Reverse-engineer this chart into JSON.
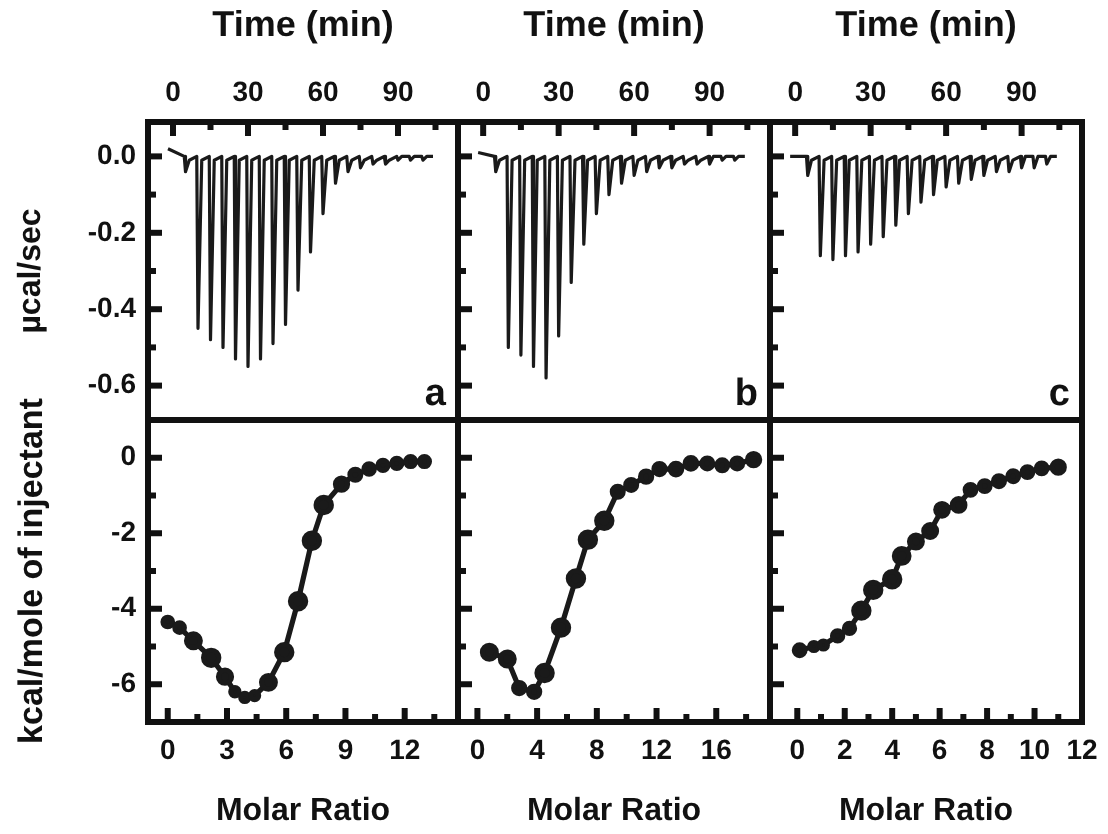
{
  "chart_data": [
    {
      "type": "line",
      "xlabel": "Time (min)",
      "ylabel": "µcal/sec",
      "xlim": [
        -10,
        114
      ],
      "ylim": [
        -0.69,
        0.09
      ],
      "xticks": [
        0,
        {
          "value": 15,
          "label": null
        },
        30,
        {
          "value": 45,
          "label": null
        },
        60,
        {
          "value": 75,
          "label": null
        },
        90,
        {
          "value": 105,
          "label": null
        }
      ],
      "yticks": [
        {
          "value": 0,
          "label": "0.0"
        },
        {
          "value": -0.1,
          "label": null
        },
        -0.2,
        {
          "value": -0.3,
          "label": null
        },
        -0.4,
        {
          "value": -0.5,
          "label": null
        },
        -0.6
      ],
      "marker": "none",
      "annotations": [
        "a"
      ],
      "x": [
        -2,
        4.5,
        5,
        6.5,
        9.5,
        10,
        11.5,
        14.5,
        15,
        16.5,
        19.5,
        20,
        21.5,
        24.5,
        25,
        26.5,
        29.5,
        30,
        31.5,
        34.5,
        35,
        36.5,
        39.5,
        40,
        41.5,
        44.5,
        45,
        46.5,
        49.5,
        50,
        51.5,
        54.5,
        55,
        56.5,
        59.5,
        60,
        61.5,
        64.5,
        65,
        66.5,
        69.5,
        70,
        71.5,
        74.5,
        75,
        76.5,
        79.5,
        80,
        81.5,
        84.5,
        85,
        86.5,
        89.5,
        90,
        91.5,
        94.5,
        95,
        96.5,
        99.5,
        100,
        101.5,
        104
      ],
      "series": [
        {
          "color": "#1a1a1a",
          "values": [
            0.02,
            0,
            -0.04,
            -0.01,
            0,
            -0.45,
            -0.01,
            0,
            -0.48,
            -0.01,
            0,
            -0.5,
            -0.01,
            0,
            -0.53,
            -0.01,
            0,
            -0.55,
            -0.01,
            0,
            -0.53,
            -0.01,
            0,
            -0.49,
            -0.01,
            0,
            -0.44,
            -0.01,
            0,
            -0.35,
            -0.01,
            0,
            -0.25,
            -0.01,
            0,
            -0.15,
            -0.01,
            0,
            -0.07,
            -0.01,
            0,
            -0.04,
            -0.01,
            0,
            -0.03,
            -0.01,
            0,
            -0.02,
            -0.01,
            0,
            -0.02,
            -0.01,
            0,
            -0.01,
            0,
            0,
            -0.01,
            0,
            0,
            -0.01,
            0,
            0
          ]
        }
      ]
    },
    {
      "type": "line",
      "xlabel": "Time (min)",
      "xlim": [
        -10,
        114
      ],
      "ylim": [
        -0.69,
        0.09
      ],
      "xticks": [
        0,
        {
          "value": 15,
          "label": null
        },
        30,
        {
          "value": 45,
          "label": null
        },
        60,
        {
          "value": 75,
          "label": null
        },
        90,
        {
          "value": 105,
          "label": null
        }
      ],
      "yticks": [
        0,
        {
          "value": -0.1,
          "label": null
        },
        -0.2,
        {
          "value": -0.3,
          "label": null
        },
        -0.4,
        {
          "value": -0.5,
          "label": null
        },
        -0.6
      ],
      "tick_labels": "x",
      "marker": "none",
      "annotations": [
        "b"
      ],
      "x": [
        -2,
        4.5,
        5,
        6.5,
        9.5,
        10,
        11.5,
        14.5,
        15,
        16.5,
        19.5,
        20,
        21.5,
        24.5,
        25,
        26.5,
        29.5,
        30,
        31.5,
        34.5,
        35,
        36.5,
        39.5,
        40,
        41.5,
        44.5,
        45,
        46.5,
        49.5,
        50,
        51.5,
        54.5,
        55,
        56.5,
        59.5,
        60,
        61.5,
        64.5,
        65,
        66.5,
        69.5,
        70,
        71.5,
        74.5,
        75,
        76.5,
        79.5,
        80,
        81.5,
        84.5,
        85,
        86.5,
        89.5,
        90,
        91.5,
        94.5,
        95,
        96.5,
        99.5,
        100,
        101.5,
        104
      ],
      "series": [
        {
          "color": "#1a1a1a",
          "values": [
            0.01,
            0,
            -0.04,
            -0.01,
            0,
            -0.5,
            -0.01,
            0,
            -0.52,
            -0.01,
            0,
            -0.55,
            -0.01,
            0,
            -0.58,
            -0.01,
            0,
            -0.47,
            -0.01,
            0,
            -0.33,
            -0.01,
            0,
            -0.23,
            -0.01,
            0,
            -0.15,
            -0.01,
            0,
            -0.1,
            -0.01,
            0,
            -0.07,
            -0.01,
            0,
            -0.05,
            -0.01,
            0,
            -0.04,
            -0.01,
            0,
            -0.03,
            -0.01,
            0,
            -0.03,
            -0.01,
            0,
            -0.02,
            -0.01,
            0,
            -0.02,
            -0.01,
            0,
            -0.02,
            0,
            0,
            -0.01,
            0,
            0,
            -0.01,
            0,
            0
          ]
        }
      ]
    },
    {
      "type": "line",
      "xlabel": "Time (min)",
      "xlim": [
        -10,
        114
      ],
      "ylim": [
        -0.69,
        0.09
      ],
      "xticks": [
        0,
        {
          "value": 15,
          "label": null
        },
        30,
        {
          "value": 45,
          "label": null
        },
        60,
        {
          "value": 75,
          "label": null
        },
        90,
        {
          "value": 105,
          "label": null
        }
      ],
      "yticks": [
        0,
        {
          "value": -0.1,
          "label": null
        },
        -0.2,
        {
          "value": -0.3,
          "label": null
        },
        -0.4,
        {
          "value": -0.5,
          "label": null
        },
        -0.6
      ],
      "tick_labels": "x",
      "marker": "none",
      "annotations": [
        "c"
      ],
      "x": [
        -2,
        4.5,
        5,
        6.5,
        9.5,
        10,
        11.5,
        14.5,
        15,
        16.5,
        19.5,
        20,
        21.5,
        24.5,
        25,
        26.5,
        29.5,
        30,
        31.5,
        34.5,
        35,
        36.5,
        39.5,
        40,
        41.5,
        44.5,
        45,
        46.5,
        49.5,
        50,
        51.5,
        54.5,
        55,
        56.5,
        59.5,
        60,
        61.5,
        64.5,
        65,
        66.5,
        69.5,
        70,
        71.5,
        74.5,
        75,
        76.5,
        79.5,
        80,
        81.5,
        84.5,
        85,
        86.5,
        89.5,
        90,
        91.5,
        94.5,
        95,
        96.5,
        99.5,
        100,
        101.5,
        104
      ],
      "series": [
        {
          "color": "#1a1a1a",
          "values": [
            0,
            0,
            -0.05,
            -0.01,
            0,
            -0.26,
            -0.01,
            0,
            -0.27,
            -0.01,
            0,
            -0.26,
            -0.01,
            0,
            -0.25,
            -0.01,
            0,
            -0.23,
            -0.01,
            0,
            -0.21,
            -0.01,
            0,
            -0.18,
            -0.01,
            0,
            -0.15,
            -0.01,
            0,
            -0.12,
            -0.01,
            0,
            -0.1,
            -0.01,
            0,
            -0.08,
            -0.01,
            0,
            -0.07,
            -0.01,
            0,
            -0.06,
            -0.01,
            0,
            -0.05,
            -0.01,
            0,
            -0.04,
            -0.01,
            0,
            -0.04,
            -0.01,
            0,
            -0.03,
            0,
            0,
            -0.03,
            0,
            0,
            -0.02,
            0,
            0
          ]
        }
      ]
    },
    {
      "type": "line",
      "xlabel": "Molar Ratio",
      "ylabel": "kcal/mole of injectant",
      "xlim": [
        -1,
        14.7
      ],
      "ylim": [
        -7,
        1
      ],
      "xticks": [
        0,
        {
          "value": 1.5,
          "label": null
        },
        3,
        {
          "value": 4.5,
          "label": null
        },
        6,
        {
          "value": 7.5,
          "label": null
        },
        9,
        {
          "value": 10.5,
          "label": null
        },
        12,
        {
          "value": 13.5,
          "label": null
        }
      ],
      "yticks": [
        0,
        {
          "value": -1,
          "label": null
        },
        -2,
        {
          "value": -3,
          "label": null
        },
        -4,
        {
          "value": -5,
          "label": null
        },
        -6
      ],
      "marker": "circle",
      "x": [
        0,
        0.6,
        1.3,
        2.2,
        2.9,
        3.4,
        3.9,
        4.4,
        5.1,
        5.9,
        6.6,
        7.3,
        7.9,
        8.8,
        9.5,
        10.2,
        10.9,
        11.6,
        12.3,
        13
      ],
      "series": [
        {
          "color": "#1a1a1a",
          "values": [
            -4.35,
            -4.5,
            -4.85,
            -5.3,
            -5.8,
            -6.2,
            -6.35,
            -6.3,
            -5.95,
            -5.15,
            -3.8,
            -2.2,
            -1.25,
            -0.7,
            -0.45,
            -0.3,
            -0.2,
            -0.15,
            -0.1,
            -0.1
          ]
        }
      ]
    },
    {
      "type": "line",
      "xlabel": "Molar Ratio",
      "xlim": [
        -1.3,
        19.6
      ],
      "ylim": [
        -7,
        1
      ],
      "xticks": [
        0,
        {
          "value": 2,
          "label": null
        },
        4,
        {
          "value": 6,
          "label": null
        },
        8,
        {
          "value": 10,
          "label": null
        },
        12,
        {
          "value": 14,
          "label": null
        },
        16,
        {
          "value": 18,
          "label": null
        }
      ],
      "yticks": [
        0,
        {
          "value": -1,
          "label": null
        },
        -2,
        {
          "value": -3,
          "label": null
        },
        -4,
        {
          "value": -5,
          "label": null
        },
        -6
      ],
      "tick_labels": "x",
      "marker": "circle",
      "x": [
        0.8,
        2,
        2.8,
        3.8,
        4.5,
        5.6,
        6.6,
        7.4,
        8.5,
        9.4,
        10.3,
        11.3,
        12.2,
        13.3,
        14.3,
        15.4,
        16.4,
        17.4,
        18.5
      ],
      "series": [
        {
          "color": "#1a1a1a",
          "values": [
            -5.15,
            -5.33,
            -6.1,
            -6.2,
            -5.7,
            -4.5,
            -3.2,
            -2.17,
            -1.67,
            -0.9,
            -0.72,
            -0.5,
            -0.3,
            -0.3,
            -0.15,
            -0.15,
            -0.2,
            -0.15,
            -0.05
          ]
        }
      ]
    },
    {
      "type": "line",
      "xlabel": "Molar Ratio",
      "xlim": [
        -1.15,
        12
      ],
      "ylim": [
        -7,
        1
      ],
      "xticks": [
        0,
        {
          "value": 1,
          "label": null
        },
        2,
        {
          "value": 3,
          "label": null
        },
        4,
        {
          "value": 5,
          "label": null
        },
        6,
        {
          "value": 7,
          "label": null
        },
        8,
        {
          "value": 9,
          "label": null
        },
        10,
        {
          "value": 11,
          "label": null
        },
        12
      ],
      "yticks": [
        0,
        {
          "value": -1,
          "label": null
        },
        -2,
        {
          "value": -3,
          "label": null
        },
        -4,
        {
          "value": -5,
          "label": null
        },
        -6
      ],
      "tick_labels": "x",
      "marker": "circle",
      "x": [
        0.1,
        0.7,
        1.1,
        1.7,
        2.2,
        2.7,
        3.2,
        4,
        4.4,
        5,
        5.6,
        6.1,
        6.8,
        7.3,
        7.9,
        8.5,
        9.1,
        9.7,
        10.3,
        11
      ],
      "series": [
        {
          "color": "#1a1a1a",
          "values": [
            -5.1,
            -5,
            -4.96,
            -4.72,
            -4.52,
            -4.05,
            -3.5,
            -3.22,
            -2.6,
            -2.22,
            -1.94,
            -1.38,
            -1.25,
            -0.85,
            -0.75,
            -0.62,
            -0.49,
            -0.38,
            -0.28,
            -0.25
          ]
        }
      ]
    }
  ]
}
